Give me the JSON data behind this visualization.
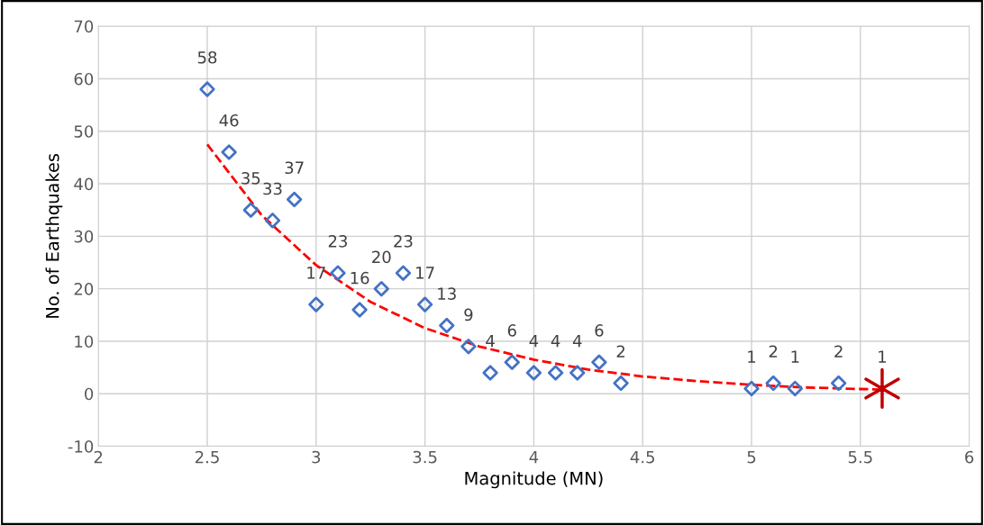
{
  "chart_data": {
    "type": "scatter",
    "xlabel": "Magnitude (MN)",
    "ylabel": "No. of Earthquakes",
    "xlim": [
      2,
      6
    ],
    "xticks": [
      2,
      2.5,
      3,
      3.5,
      4,
      4.5,
      5,
      5.5,
      6
    ],
    "ylim": [
      -10,
      70
    ],
    "yticks": [
      -10,
      0,
      10,
      20,
      30,
      40,
      50,
      60,
      70
    ],
    "grid": true,
    "legend": false,
    "series": [
      {
        "color": "#4472c4",
        "marker": "diamond",
        "x": [
          2.5,
          2.6,
          2.7,
          2.8,
          2.9,
          3.0,
          3.1,
          3.2,
          3.3,
          3.4,
          3.5,
          3.6,
          3.7,
          3.8,
          3.9,
          4.0,
          4.1,
          4.2,
          4.3,
          4.4,
          5.0,
          5.1,
          5.2,
          5.4
        ],
        "values": [
          58,
          46,
          35,
          33,
          37,
          17,
          23,
          16,
          20,
          23,
          17,
          13,
          9,
          4,
          6,
          4,
          4,
          4,
          6,
          2,
          1,
          2,
          1,
          2
        ],
        "value_labels": [
          "58",
          "46",
          "35",
          "33",
          "37",
          "17",
          "23",
          "16",
          "20",
          "23",
          "17",
          "13",
          "9",
          "4",
          "6",
          "4",
          "4",
          "4",
          "6",
          "2",
          "1",
          "2",
          "1",
          "2"
        ]
      },
      {
        "type": "line",
        "color": "#ff0000",
        "line_style": "dashed",
        "marker": "none",
        "x": [
          2.5,
          2.75,
          3.0,
          3.25,
          3.5,
          3.75,
          4.0,
          4.25,
          4.5,
          4.75,
          5.0,
          5.25,
          5.5,
          5.6
        ],
        "values": [
          47.5,
          34,
          24.5,
          17.5,
          12.5,
          9,
          6.5,
          4.6,
          3.3,
          2.4,
          1.7,
          1.2,
          0.9,
          0.8
        ]
      },
      {
        "type": "scatter",
        "color": "#c00000",
        "marker": "cross",
        "x": [
          5.6
        ],
        "values": [
          1
        ],
        "value_labels": [
          "1"
        ]
      }
    ]
  }
}
